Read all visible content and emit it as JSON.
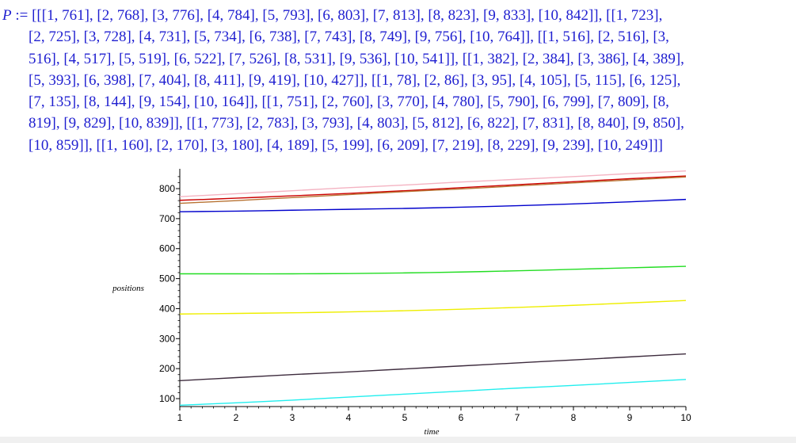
{
  "output": {
    "variable": "P",
    "operator": ":=",
    "lines": [
      "[[[1, 761], [2, 768], [3, 776], [4, 784], [5, 793], [6, 803], [7, 813], [8, 823], [9, 833], [10, 842]], [[1, 723],",
      "[2, 725], [3, 728], [4, 731], [5, 734], [6, 738], [7, 743], [8, 749], [9, 756], [10, 764]], [[1, 516], [2, 516], [3,",
      "516], [4, 517], [5, 519], [6, 522], [7, 526], [8, 531], [9, 536], [10, 541]], [[1, 382], [2, 384], [3, 386], [4, 389],",
      "[5, 393], [6, 398], [7, 404], [8, 411], [9, 419], [10, 427]], [[1, 78], [2, 86], [3, 95], [4, 105], [5, 115], [6, 125],",
      "[7, 135], [8, 144], [9, 154], [10, 164]], [[1, 751], [2, 760], [3, 770], [4, 780], [5, 790], [6, 799], [7, 809], [8,",
      "819], [9, 829], [10, 839]], [[1, 773], [2, 783], [3, 793], [4, 803], [5, 812], [6, 822], [7, 831], [8, 840], [9, 850],",
      "[10, 859]], [[1, 160], [2, 170], [3, 180], [4, 189], [5, 199], [6, 209], [7, 219], [8, 229], [9, 239], [10, 249]]]"
    ]
  },
  "chart_data": {
    "type": "line",
    "title": "",
    "xlabel": "time",
    "ylabel": "positions",
    "xlim": [
      1,
      10
    ],
    "ylim": [
      75,
      860
    ],
    "x_ticks": [
      1,
      2,
      3,
      4,
      5,
      6,
      7,
      8,
      9,
      10
    ],
    "y_ticks": [
      100,
      200,
      300,
      400,
      500,
      600,
      700,
      800
    ],
    "grid": false,
    "legend": "none",
    "x": [
      1,
      2,
      3,
      4,
      5,
      6,
      7,
      8,
      9,
      10
    ],
    "series": [
      {
        "color": "#cc0000",
        "values": [
          761,
          768,
          776,
          784,
          793,
          803,
          813,
          823,
          833,
          842
        ]
      },
      {
        "color": "#0000cc",
        "values": [
          723,
          725,
          728,
          731,
          734,
          738,
          743,
          749,
          756,
          764
        ]
      },
      {
        "color": "#22dd22",
        "values": [
          516,
          516,
          516,
          517,
          519,
          522,
          526,
          531,
          536,
          541
        ]
      },
      {
        "color": "#eeee00",
        "values": [
          382,
          384,
          386,
          389,
          393,
          398,
          404,
          411,
          419,
          427
        ]
      },
      {
        "color": "#22eeee",
        "values": [
          78,
          86,
          95,
          105,
          115,
          125,
          135,
          144,
          154,
          164
        ]
      },
      {
        "color": "#b87333",
        "values": [
          751,
          760,
          770,
          780,
          790,
          799,
          809,
          819,
          829,
          839
        ]
      },
      {
        "color": "#f4b3c2",
        "values": [
          773,
          783,
          793,
          803,
          812,
          822,
          831,
          840,
          850,
          859
        ]
      },
      {
        "color": "#3d2b3d",
        "values": [
          160,
          170,
          180,
          189,
          199,
          209,
          219,
          229,
          239,
          249
        ]
      }
    ]
  }
}
